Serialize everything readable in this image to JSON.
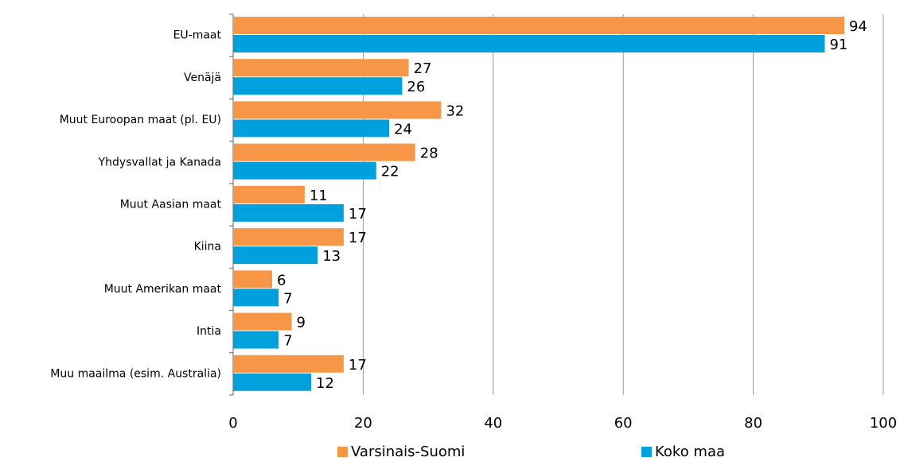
{
  "chart_data": {
    "type": "hbar",
    "categories": [
      "EU-maat",
      "Venäjä",
      "Muut Euroopan maat (pl. EU)",
      "Yhdysvallat ja Kanada",
      "Muut Aasian maat",
      "Kiina",
      "Muut Amerikan maat",
      "Intia",
      "Muu maailma (esim. Australia)"
    ],
    "series": [
      {
        "name": "Varsinais-Suomi",
        "color": "#f79646",
        "values": [
          94,
          27,
          32,
          28,
          11,
          17,
          6,
          9,
          17
        ]
      },
      {
        "name": "Koko maa",
        "color": "#00a0dc",
        "values": [
          91,
          26,
          24,
          22,
          17,
          13,
          7,
          7,
          12
        ]
      }
    ],
    "xlim": [
      0,
      100
    ],
    "xticks": [
      0,
      20,
      40,
      60,
      80,
      100
    ],
    "grid": true,
    "legend": "bottom"
  }
}
